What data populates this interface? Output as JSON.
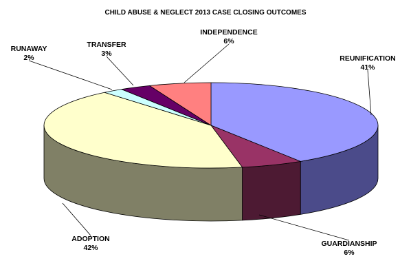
{
  "chart_data": {
    "type": "pie",
    "style": "3d",
    "title": "CHILD ABUSE & NEGLECT 2013 CASE CLOSING OUTCOMES",
    "slices": [
      {
        "label": "REUNIFICATION",
        "value": 41,
        "value_label": "41%",
        "color": "#9999ff",
        "side_color": "#4b4b8a"
      },
      {
        "label": "GUARDIANSHIP",
        "value": 6,
        "value_label": "6%",
        "color": "#993366",
        "side_color": "#4d1a33"
      },
      {
        "label": "ADOPTION",
        "value": 42,
        "value_label": "42%",
        "color": "#ffffcc",
        "side_color": "#808066"
      },
      {
        "label": "RUNAWAY",
        "value": 2,
        "value_label": "2%",
        "color": "#ccffff",
        "side_color": "#668080"
      },
      {
        "label": "TRANSFER",
        "value": 3,
        "value_label": "3%",
        "color": "#660066",
        "side_color": "#330033"
      },
      {
        "label": "INDEPENDENCE",
        "value": 6,
        "value_label": "6%",
        "color": "#ff8080",
        "side_color": "#804040"
      }
    ]
  }
}
